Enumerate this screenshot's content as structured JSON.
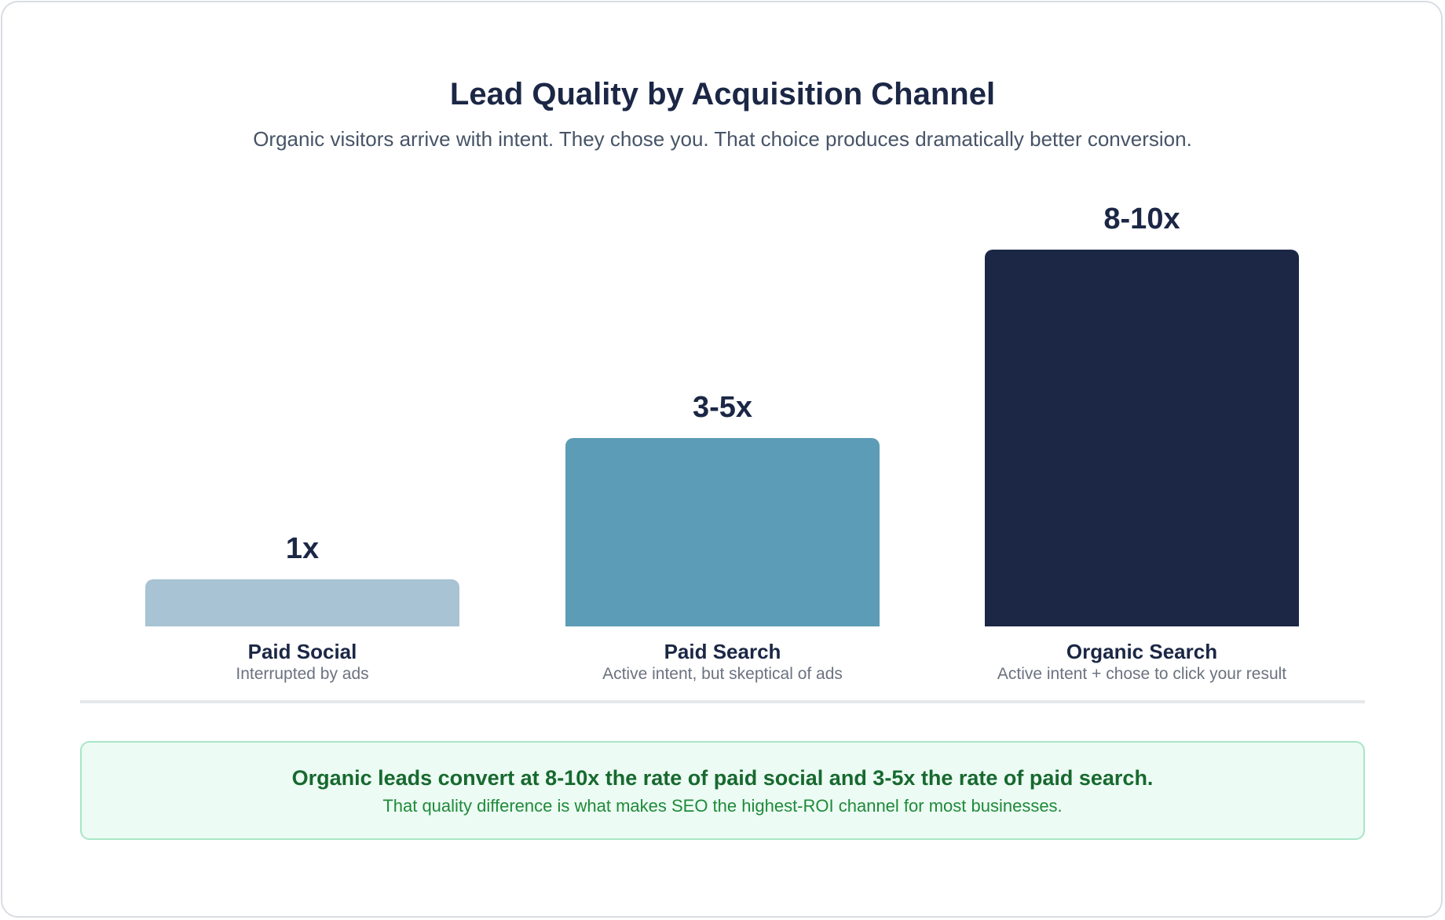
{
  "colors": {
    "paid_social": "#a8c3d3",
    "paid_search": "#5c9cb6",
    "organic_search": "#1b2745"
  },
  "header": {
    "title": "Lead Quality by Acquisition Channel",
    "subtitle": "Organic visitors arrive with intent. They chose you. That choice produces dramatically better conversion."
  },
  "chart_data": {
    "type": "bar",
    "categories": [
      "Paid Social",
      "Paid Search",
      "Organic Search"
    ],
    "subtitles": [
      "Interrupted by ads",
      "Active intent, but skeptical of ads",
      "Active intent + chose to click your result"
    ],
    "value_labels": [
      "1x",
      "3-5x",
      "8-10x"
    ],
    "values": [
      1,
      4,
      8
    ],
    "title": "Lead Quality by Acquisition Channel",
    "xlabel": "",
    "ylabel": "",
    "ylim": [
      0,
      8
    ],
    "grid": false,
    "legend": "none"
  },
  "callout": {
    "main": "Organic leads convert at 8-10x the rate of paid social and 3-5x the rate of paid search.",
    "sub": "That quality difference is what makes SEO the highest-ROI channel for most businesses."
  }
}
